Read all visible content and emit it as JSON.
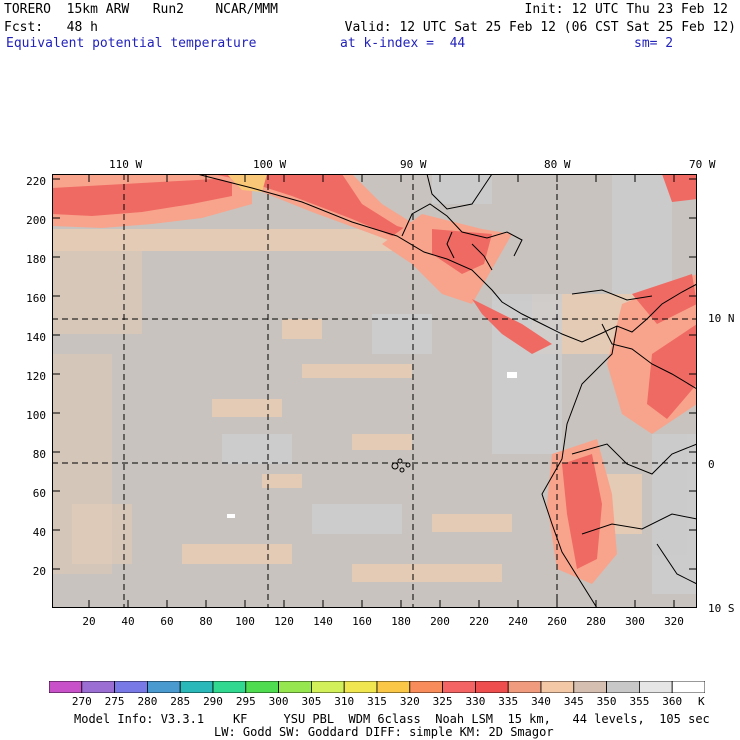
{
  "header": {
    "line1_left": "TORERO  15km ARW   Run2    NCAR/MMM",
    "line1_right": "Init: 12 UTC Thu 23 Feb 12",
    "line2_left": "Fcst:   48 h",
    "line2_right": "Valid: 12 UTC Sat 25 Feb 12 (06 CST Sat 25 Feb 12)",
    "field_name": "Equivalent potential temperature",
    "level": "at k-index =  44",
    "smoothing": "sm= 2"
  },
  "map": {
    "longitude_labels": [
      "110 W",
      "100 W",
      "90 W",
      "80 W",
      "70 W"
    ],
    "latitude_labels": [
      "10 N",
      "0",
      "10 S"
    ],
    "y_ticks": [
      "220",
      "200",
      "180",
      "160",
      "140",
      "120",
      "100",
      "80",
      "60",
      "40",
      "20"
    ],
    "x_ticks": [
      "20",
      "40",
      "60",
      "80",
      "100",
      "120",
      "140",
      "160",
      "180",
      "200",
      "220",
      "240",
      "260",
      "280",
      "300",
      "320"
    ],
    "background_color": "#c8c3be"
  },
  "colorbar": {
    "labels": [
      "270",
      "275",
      "280",
      "285",
      "290",
      "295",
      "300",
      "305",
      "310",
      "315",
      "320",
      "325",
      "330",
      "335",
      "340",
      "345",
      "350",
      "355",
      "360"
    ],
    "unit": "K",
    "colors": [
      "#c850c8",
      "#9a6ed2",
      "#7878e6",
      "#4a9ad0",
      "#2ab8b8",
      "#30d890",
      "#50dc50",
      "#96e650",
      "#d2f05a",
      "#f0e650",
      "#fac846",
      "#f88c5a",
      "#f56464",
      "#ee4e4e",
      "#f09a7e",
      "#f3c8a6",
      "#d4bfb0",
      "#c8c8c8",
      "#e6e6e6",
      "#ffffff"
    ]
  },
  "footer": {
    "line1": "Model Info: V3.3.1    KF     YSU PBL  WDM 6class  Noah LSM  15 km,   44 levels,  105 sec",
    "line2": "LW: Godd SW: Goddard DIFF: simple KM: 2D Smagor"
  }
}
